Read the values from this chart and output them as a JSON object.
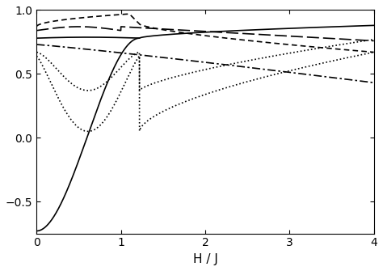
{
  "xlim": [
    0,
    4
  ],
  "ylim": [
    -0.75,
    1.0
  ],
  "xlabel": "H / J",
  "yticks": [
    -0.5,
    0,
    0.5,
    1
  ],
  "xticks": [
    0,
    1,
    2,
    3,
    4
  ],
  "figsize": [
    4.74,
    3.35
  ],
  "dpi": 100,
  "Hc": 1.22,
  "lw": 1.2
}
